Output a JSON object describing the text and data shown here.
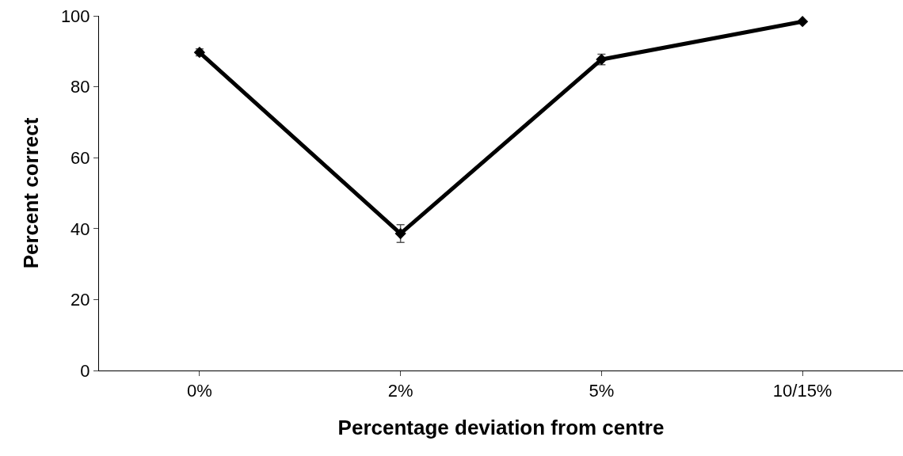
{
  "chart_data": {
    "type": "line",
    "xlabel": "Percentage deviation from centre",
    "ylabel": "Percent correct",
    "categories": [
      "0%",
      "2%",
      "5%",
      "10/15%"
    ],
    "series": [
      {
        "color": "#000000",
        "values": [
          89.7,
          38.6,
          87.7,
          98.4
        ],
        "errors": [
          1,
          2.5,
          1.5,
          null
        ]
      }
    ],
    "ylim": [
      0,
      100
    ],
    "yticks": [
      0,
      20,
      40,
      60,
      80,
      100
    ],
    "marker": "diamond",
    "line_style": "solid"
  }
}
